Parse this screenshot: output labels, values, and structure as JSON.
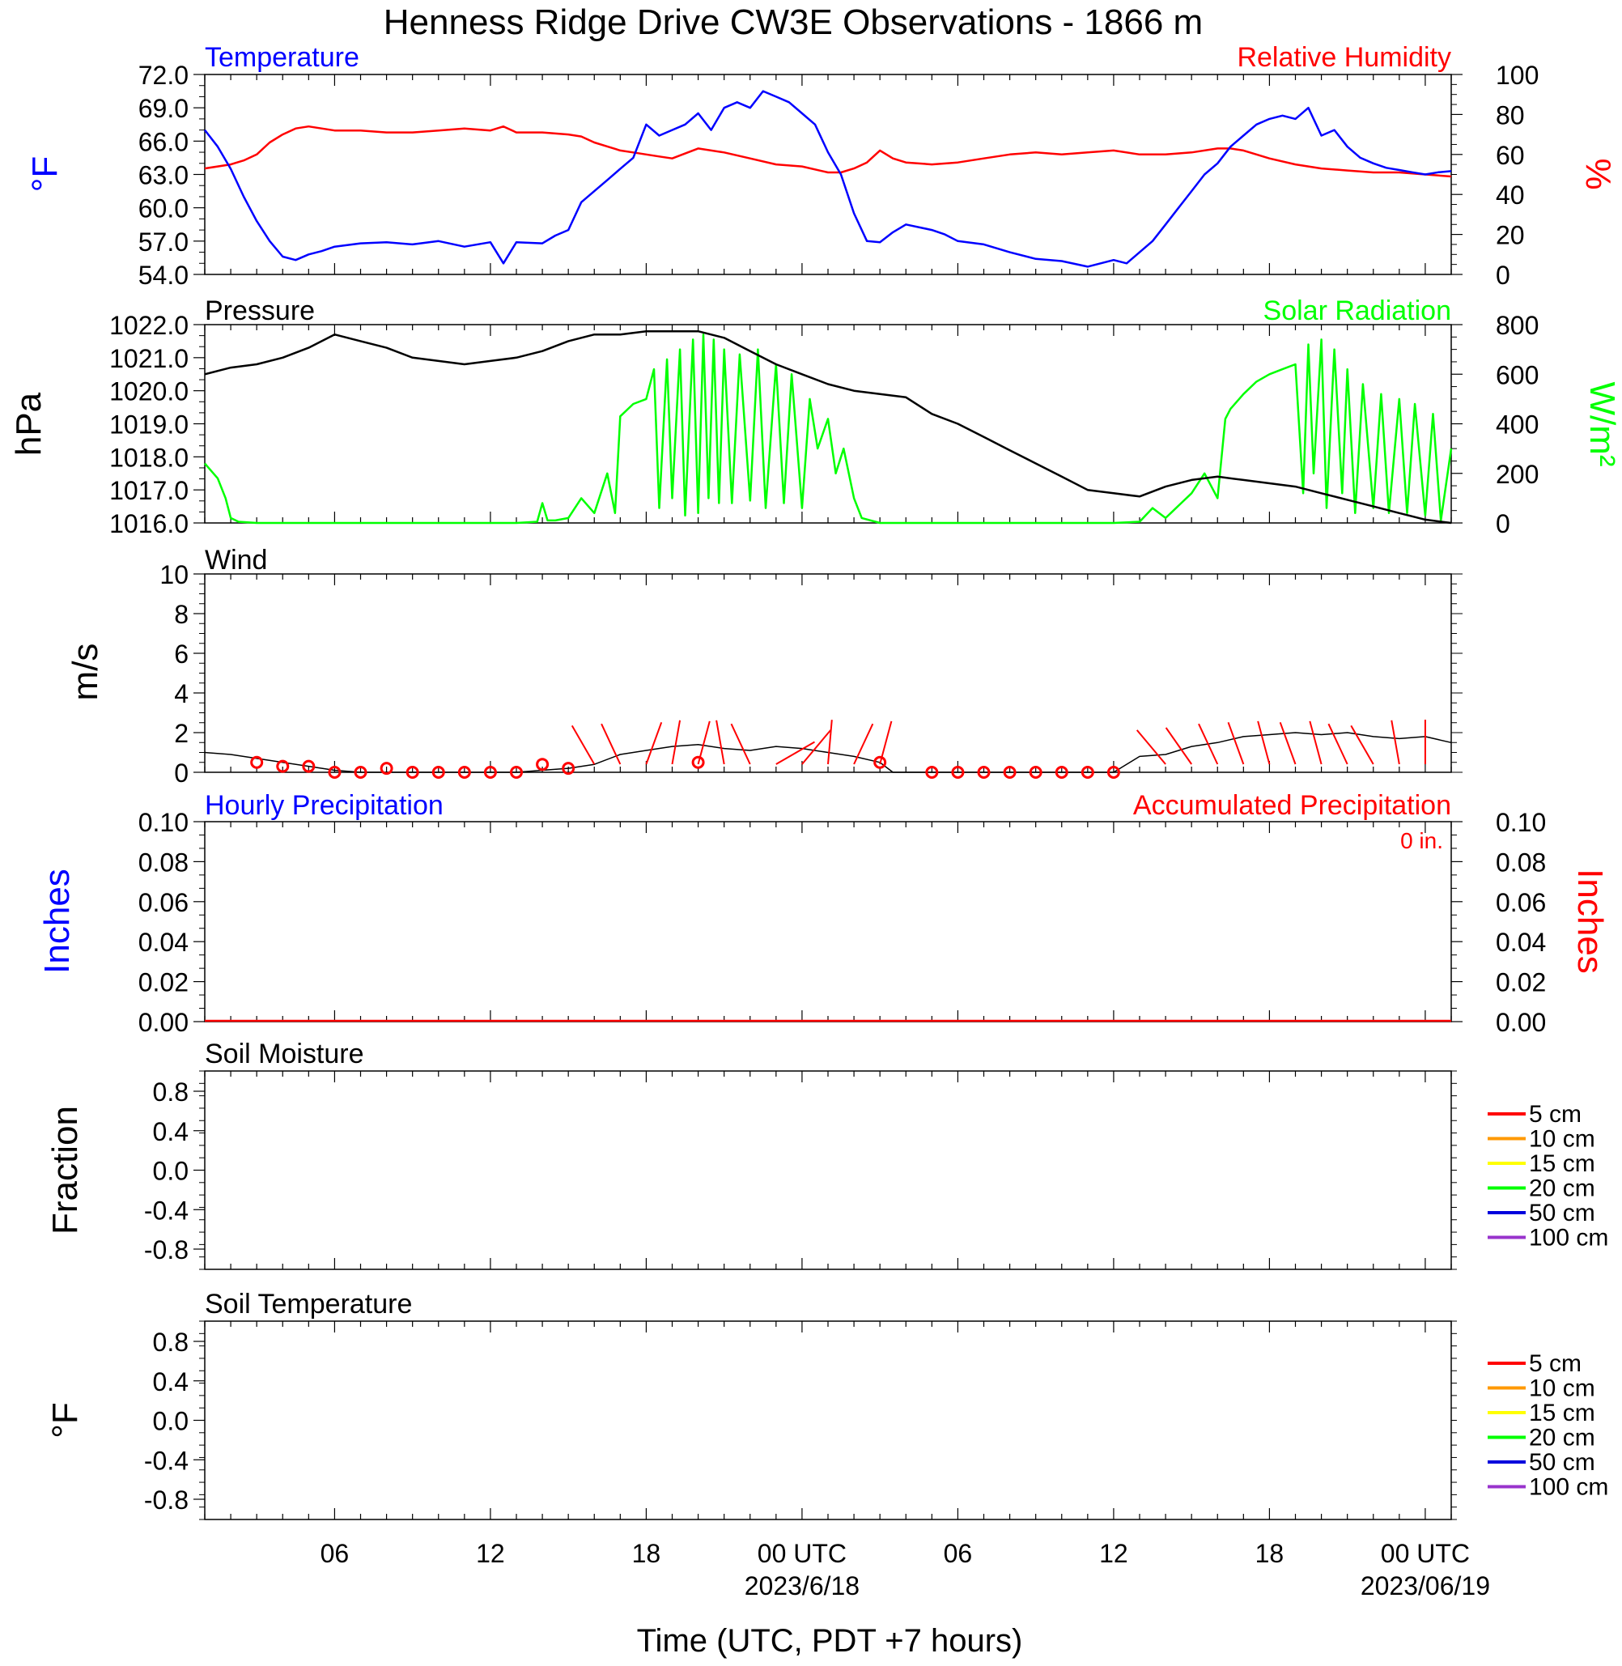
{
  "title": "Henness Ridge Drive CW3E Observations - 1866 m",
  "colors": {
    "blue": "#0000ff",
    "red": "#ff0000",
    "green": "#00ff00",
    "black": "#000000",
    "orange": "#ff9900",
    "yellow": "#ffff00",
    "darkblue": "#0000dd",
    "purple": "#9933cc"
  },
  "x_axis": {
    "label": "Time (UTC, PDT +7 hours)",
    "range_hours": [
      0,
      48
    ],
    "tick_labels": [
      {
        "hour": 5,
        "label": "06"
      },
      {
        "hour": 11,
        "label": "12"
      },
      {
        "hour": 17,
        "label": "18"
      },
      {
        "hour": 23,
        "label": "00 UTC"
      },
      {
        "hour": 29,
        "label": "06"
      },
      {
        "hour": 35,
        "label": "12"
      },
      {
        "hour": 41,
        "label": "18"
      },
      {
        "hour": 47,
        "label": "00 UTC"
      }
    ],
    "date_labels": [
      {
        "hour": 23,
        "label": "2023/6/18"
      },
      {
        "hour": 47,
        "label": "2023/06/19"
      }
    ]
  },
  "panels": {
    "temp_rh": {
      "left_title": "Temperature",
      "right_title": "Relative Humidity",
      "left_unit": "°F",
      "right_unit": "%",
      "left_ticks": [
        "54.0",
        "57.0",
        "60.0",
        "63.0",
        "66.0",
        "69.0",
        "72.0"
      ],
      "right_ticks": [
        "0",
        "20",
        "40",
        "60",
        "80",
        "100"
      ]
    },
    "pres_solar": {
      "left_title": "Pressure",
      "right_title": "Solar Radiation",
      "left_unit": "hPa",
      "right_unit": "W/m²",
      "left_ticks": [
        "1016.0",
        "1017.0",
        "1018.0",
        "1019.0",
        "1020.0",
        "1021.0",
        "1022.0"
      ],
      "right_ticks": [
        "0",
        "200",
        "400",
        "600",
        "800"
      ]
    },
    "wind": {
      "left_title": "Wind",
      "left_unit": "m/s",
      "left_ticks": [
        "0",
        "2",
        "4",
        "6",
        "8",
        "10"
      ]
    },
    "precip": {
      "left_title": "Hourly Precipitation",
      "right_title": "Accumulated Precipitation",
      "accum_text": "0 in.",
      "left_unit": "Inches",
      "right_unit": "Inches",
      "left_ticks": [
        "0.00",
        "0.02",
        "0.04",
        "0.06",
        "0.08",
        "0.10"
      ],
      "right_ticks": [
        "0.00",
        "0.02",
        "0.04",
        "0.06",
        "0.08",
        "0.10"
      ]
    },
    "soil_moist": {
      "left_title": "Soil Moisture",
      "left_unit": "Fraction",
      "left_ticks": [
        "-0.8",
        "-0.4",
        "0.0",
        "0.4",
        "0.8"
      ],
      "legend": [
        "5 cm",
        "10 cm",
        "15 cm",
        "20 cm",
        "50 cm",
        "100 cm"
      ]
    },
    "soil_temp": {
      "left_title": "Soil Temperature",
      "left_unit": "°F",
      "left_ticks": [
        "-0.8",
        "-0.4",
        "0.0",
        "0.4",
        "0.8"
      ],
      "legend": [
        "5 cm",
        "10 cm",
        "15 cm",
        "20 cm",
        "50 cm",
        "100 cm"
      ]
    }
  },
  "chart_data": [
    {
      "type": "line",
      "name": "temperature",
      "ylabel": "°F",
      "ylim": [
        54,
        72
      ],
      "x_hours": [
        0,
        0.5,
        1,
        1.5,
        2,
        2.5,
        3,
        3.5,
        4,
        4.5,
        5,
        6,
        7,
        8,
        9,
        10,
        11,
        11.5,
        12,
        13,
        13.5,
        14,
        14.5,
        15,
        15.5,
        16,
        16.5,
        17,
        17.5,
        18,
        18.5,
        19,
        19.5,
        20,
        20.5,
        21,
        21.5,
        22,
        22.5,
        23,
        23.5,
        24,
        24.5,
        25,
        25.5,
        26,
        26.5,
        27,
        28,
        28.5,
        29,
        30,
        31,
        32,
        33,
        34,
        35,
        35.5,
        36,
        36.5,
        37,
        37.5,
        38,
        38.5,
        39,
        39.5,
        40,
        40.5,
        41,
        41.5,
        42,
        42.5,
        43,
        43.5,
        44,
        44.5,
        45,
        45.5,
        46,
        46.5,
        47,
        47.5,
        48
      ],
      "y": [
        67.0,
        65.5,
        63.5,
        61.0,
        58.8,
        57.0,
        55.6,
        55.3,
        55.8,
        56.1,
        56.5,
        56.8,
        56.9,
        56.7,
        57.0,
        56.5,
        56.9,
        55.0,
        56.9,
        56.8,
        57.5,
        58.0,
        60.5,
        61.5,
        62.5,
        63.5,
        64.5,
        67.5,
        66.5,
        67.0,
        67.5,
        68.5,
        67.0,
        69.0,
        69.5,
        69.0,
        70.5,
        70.0,
        69.5,
        68.5,
        67.5,
        65.0,
        63.0,
        59.5,
        57.0,
        56.9,
        57.8,
        58.5,
        58.0,
        57.6,
        57.0,
        56.7,
        56.0,
        55.4,
        55.2,
        54.7,
        55.3,
        55.0,
        56.0,
        57.0,
        58.5,
        60.0,
        61.5,
        63.0,
        64.0,
        65.5,
        66.5,
        67.5,
        68.0,
        68.3,
        68.0,
        69.0,
        66.5,
        67.0,
        65.5,
        64.5,
        64.0,
        63.6,
        63.4,
        63.2,
        63.0,
        63.2,
        63.3
      ]
    },
    {
      "type": "line",
      "name": "relative_humidity",
      "ylabel": "%",
      "ylim": [
        0,
        100
      ],
      "x_hours": [
        0,
        1,
        1.5,
        2,
        2.5,
        3,
        3.5,
        4,
        4.5,
        5,
        6,
        7,
        8,
        9,
        10,
        11,
        11.5,
        12,
        13,
        14,
        14.5,
        15,
        15.5,
        16,
        16.5,
        17,
        17.5,
        18,
        19,
        20,
        21,
        22,
        23,
        24,
        24.5,
        25,
        25.5,
        26,
        26.5,
        27,
        28,
        29,
        30,
        31,
        32,
        33,
        34,
        35,
        36,
        37,
        38,
        39,
        39.5,
        40,
        40.5,
        41,
        42,
        43,
        44,
        45,
        46,
        47,
        48
      ],
      "y": [
        53,
        55,
        57,
        60,
        66,
        70,
        73,
        74,
        73,
        72,
        72,
        71,
        71,
        72,
        73,
        72,
        74,
        71,
        71,
        70,
        69,
        66,
        64,
        62,
        61,
        60,
        59,
        58,
        63,
        61,
        58,
        55,
        54,
        51,
        51,
        53,
        56,
        62,
        58,
        56,
        55,
        56,
        58,
        60,
        61,
        60,
        61,
        62,
        60,
        60,
        61,
        63,
        63,
        62,
        60,
        58,
        55,
        53,
        52,
        51,
        51,
        50,
        49
      ]
    },
    {
      "type": "line",
      "name": "pressure",
      "ylabel": "hPa",
      "ylim": [
        1016,
        1022
      ],
      "x_hours": [
        0,
        1,
        2,
        3,
        4,
        5,
        6,
        7,
        8,
        9,
        10,
        11,
        12,
        13,
        14,
        15,
        16,
        17,
        18,
        19,
        20,
        21,
        22,
        23,
        24,
        25,
        26,
        27,
        28,
        29,
        30,
        31,
        32,
        33,
        34,
        35,
        36,
        37,
        38,
        39,
        40,
        41,
        42,
        43,
        44,
        45,
        46,
        47,
        48
      ],
      "y": [
        1020.5,
        1020.7,
        1020.8,
        1021.0,
        1021.3,
        1021.7,
        1021.5,
        1021.3,
        1021.0,
        1020.9,
        1020.8,
        1020.9,
        1021.0,
        1021.2,
        1021.5,
        1021.7,
        1021.7,
        1021.8,
        1021.8,
        1021.8,
        1021.6,
        1021.2,
        1020.8,
        1020.5,
        1020.2,
        1020.0,
        1019.9,
        1019.8,
        1019.3,
        1019.0,
        1018.6,
        1018.2,
        1017.8,
        1017.4,
        1017.0,
        1016.9,
        1016.8,
        1017.1,
        1017.3,
        1017.4,
        1017.3,
        1017.2,
        1017.1,
        1016.9,
        1016.7,
        1016.5,
        1016.3,
        1016.1,
        1016.0
      ]
    },
    {
      "type": "line",
      "name": "solar_radiation",
      "ylabel": "W/m²",
      "ylim": [
        0,
        800
      ],
      "x_hours": [
        0,
        0.5,
        0.8,
        1,
        1.3,
        2,
        3,
        4,
        5,
        6,
        7,
        8,
        9,
        10,
        11,
        12,
        12.8,
        13,
        13.2,
        13.5,
        14,
        14.5,
        15,
        15.5,
        15.8,
        16,
        16.5,
        17,
        17.3,
        17.5,
        17.8,
        18,
        18.3,
        18.5,
        18.8,
        19,
        19.2,
        19.4,
        19.6,
        19.8,
        20,
        20.3,
        20.6,
        21,
        21.3,
        21.6,
        22,
        22.3,
        22.6,
        23,
        23.3,
        23.6,
        24,
        24.3,
        24.6,
        25,
        25.3,
        26,
        27,
        28,
        29,
        30,
        31,
        32,
        33,
        34,
        35,
        36,
        36.5,
        37,
        37.2,
        37.5,
        38,
        38.5,
        39,
        39.3,
        39.5,
        40,
        40.5,
        41,
        41.5,
        42,
        42.3,
        42.5,
        42.7,
        43,
        43.2,
        43.5,
        43.8,
        44,
        44.3,
        44.6,
        45,
        45.3,
        45.6,
        46,
        46.3,
        46.6,
        47,
        47.3,
        47.6,
        48
      ],
      "y": [
        240,
        180,
        100,
        20,
        5,
        0,
        0,
        0,
        0,
        0,
        0,
        0,
        0,
        0,
        0,
        0,
        5,
        80,
        10,
        10,
        20,
        100,
        40,
        200,
        40,
        430,
        480,
        500,
        620,
        60,
        660,
        100,
        700,
        30,
        740,
        40,
        760,
        100,
        740,
        80,
        700,
        80,
        680,
        90,
        700,
        60,
        640,
        80,
        600,
        60,
        500,
        300,
        420,
        200,
        300,
        100,
        20,
        0,
        0,
        0,
        0,
        0,
        0,
        0,
        0,
        0,
        0,
        5,
        60,
        20,
        40,
        70,
        120,
        200,
        100,
        420,
        460,
        520,
        570,
        600,
        620,
        640,
        120,
        720,
        200,
        740,
        60,
        700,
        120,
        620,
        40,
        560,
        60,
        520,
        40,
        500,
        40,
        480,
        30,
        440,
        10,
        300
      ]
    },
    {
      "type": "line",
      "name": "wind_speed",
      "ylabel": "m/s",
      "ylim": [
        0,
        10
      ],
      "x_hours": [
        0,
        1,
        2,
        3,
        4,
        5,
        6,
        7,
        8,
        9,
        10,
        11,
        12,
        13,
        14,
        15,
        16,
        17,
        18,
        19,
        20,
        21,
        22,
        23,
        24,
        25,
        26,
        26.5,
        27,
        28,
        29,
        30,
        31,
        32,
        33,
        34,
        35,
        36,
        37,
        38,
        39,
        40,
        41,
        42,
        43,
        44,
        45,
        46,
        47,
        48
      ],
      "y": [
        1.0,
        0.9,
        0.7,
        0.5,
        0.3,
        0.1,
        0.0,
        0.0,
        0.0,
        0.0,
        0.0,
        0.0,
        0.0,
        0.1,
        0.2,
        0.4,
        0.9,
        1.1,
        1.3,
        1.4,
        1.2,
        1.1,
        1.3,
        1.2,
        1.0,
        0.8,
        0.5,
        0.0,
        0.0,
        0.0,
        0.0,
        0.0,
        0.0,
        0.0,
        0.0,
        0.0,
        0.0,
        0.8,
        0.9,
        1.3,
        1.5,
        1.8,
        1.9,
        2.0,
        1.9,
        2.0,
        1.8,
        1.7,
        1.8,
        1.5
      ]
    },
    {
      "type": "scatter",
      "name": "wind_calm_markers",
      "x_hours": [
        2,
        3,
        4,
        5,
        6,
        7,
        8,
        9,
        10,
        11,
        12,
        13,
        14,
        19,
        26,
        28,
        29,
        30,
        31,
        32,
        33,
        34,
        35
      ],
      "y": [
        0.5,
        0.3,
        0.3,
        0,
        0,
        0.2,
        0,
        0,
        0,
        0,
        0,
        0.4,
        0.2,
        0.5,
        0.5,
        0,
        0,
        0,
        0,
        0,
        0,
        0,
        0
      ]
    },
    {
      "type": "line",
      "name": "precipitation",
      "ylabel": "Inches",
      "ylim": [
        0,
        0.1
      ],
      "x_hours": [
        0,
        48
      ],
      "y": [
        0,
        0
      ]
    }
  ]
}
